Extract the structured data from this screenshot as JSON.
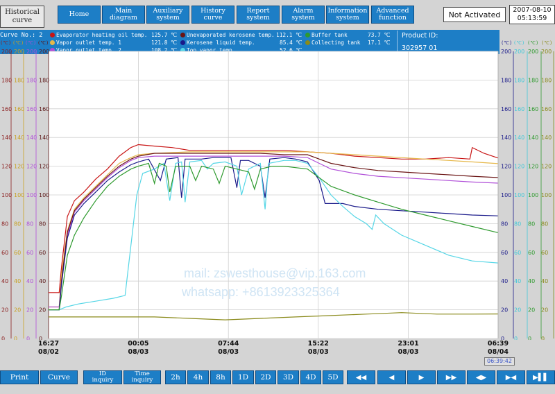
{
  "header": {
    "page_title_line1": "Historical",
    "page_title_line2": "curve",
    "nav": [
      {
        "line1": "Home",
        "line2": ""
      },
      {
        "line1": "Main",
        "line2": "diagram"
      },
      {
        "line1": "Auxiliary",
        "line2": "system"
      },
      {
        "line1": "History",
        "line2": "curve"
      },
      {
        "line1": "Report",
        "line2": "system"
      },
      {
        "line1": "Alarm",
        "line2": "system"
      },
      {
        "line1": "Information",
        "line2": "system"
      },
      {
        "line1": "Advanced",
        "line2": "function"
      }
    ],
    "activation_status": "Not Activated",
    "date": "2007-08-10",
    "time": "05:13:59"
  },
  "info": {
    "curve_no_label": "Curve No.: 2",
    "product_id_label": "Product ID:",
    "product_id_value": "302957 01",
    "units": [
      "(℃)",
      "(℃)",
      "(℃)",
      "(℃)",
      "(℃)",
      "(℃)",
      "(℃)",
      "(℃)"
    ]
  },
  "legend": [
    {
      "name": "Evaporator heating oil temp.",
      "value": "125.7 ℃",
      "color": "#c81414"
    },
    {
      "name": "Vapor outlet temp. 1",
      "value": "121.8 ℃",
      "color": "#e6b84a"
    },
    {
      "name": "Vapor outlet temp. 2",
      "value": "108.2 ℃",
      "color": "#b04fd8"
    },
    {
      "name": "Unevaporated kerosene temp.",
      "value": "112.1 ℃",
      "color": "#6a1414"
    },
    {
      "name": "Kerosene liquid temp.",
      "value": "85.4 ℃",
      "color": "#1a1a8a"
    },
    {
      "name": "Top vapor temp.",
      "value": "52.6 ℃",
      "color": "#55d6e6"
    },
    {
      "name": "Buffer tank",
      "value": "73.7 ℃",
      "color": "#2e9a2e"
    },
    {
      "name": "Collecting tank",
      "value": "17.1 ℃",
      "color": "#8a8a1a"
    }
  ],
  "axis_colors": {
    "left": [
      "#8a1a1a",
      "#c8a020",
      "#b04fd8",
      "#5a1414"
    ],
    "right": [
      "#1a1a8a",
      "#40c8d8",
      "#2e9a2e",
      "#8a8a1a"
    ]
  },
  "chart_data": {
    "type": "line",
    "y_ticks": [
      "0",
      "20",
      "40",
      "60",
      "80",
      "100",
      "120",
      "140",
      "160",
      "180",
      "200"
    ],
    "ylim": [
      0,
      200
    ],
    "x_ticks": [
      {
        "time": "16:27",
        "date": "08/02"
      },
      {
        "time": "00:05",
        "date": "08/03"
      },
      {
        "time": "07:44",
        "date": "08/03"
      },
      {
        "time": "15:22",
        "date": "08/03"
      },
      {
        "time": "23:01",
        "date": "08/03"
      },
      {
        "time": "06:39",
        "date": "08/04"
      }
    ],
    "x_hours": [
      0,
      7.63,
      15.28,
      22.92,
      30.57,
      38.2
    ],
    "cursor_time": "06:39:42",
    "series": [
      {
        "name": "Evaporator heating oil temp.",
        "color": "#c81414",
        "points": [
          [
            0,
            32
          ],
          [
            0.9,
            32
          ],
          [
            1.1,
            50
          ],
          [
            1.6,
            85
          ],
          [
            2.2,
            96
          ],
          [
            3.0,
            102
          ],
          [
            4.0,
            111
          ],
          [
            5.0,
            118
          ],
          [
            6.0,
            127
          ],
          [
            7.0,
            133
          ],
          [
            7.63,
            135
          ],
          [
            9.0,
            134
          ],
          [
            10.5,
            133
          ],
          [
            12,
            131
          ],
          [
            14,
            131
          ],
          [
            16,
            131
          ],
          [
            18,
            131
          ],
          [
            20,
            131
          ],
          [
            22,
            130
          ],
          [
            24,
            129
          ],
          [
            26,
            127
          ],
          [
            28,
            126
          ],
          [
            30,
            125
          ],
          [
            32,
            125
          ],
          [
            34,
            126
          ],
          [
            35.8,
            125
          ],
          [
            36,
            133
          ],
          [
            37,
            129
          ],
          [
            38.2,
            125.7
          ]
        ]
      },
      {
        "name": "Vapor outlet temp. 1",
        "color": "#e6b84a",
        "points": [
          [
            0,
            22
          ],
          [
            0.9,
            22
          ],
          [
            1.1,
            45
          ],
          [
            1.6,
            75
          ],
          [
            2.2,
            90
          ],
          [
            3.0,
            98
          ],
          [
            4.0,
            106
          ],
          [
            5.0,
            114
          ],
          [
            6.0,
            122
          ],
          [
            7.0,
            126
          ],
          [
            7.63,
            128
          ],
          [
            9,
            129
          ],
          [
            12,
            130
          ],
          [
            15,
            130
          ],
          [
            18,
            130
          ],
          [
            20,
            130
          ],
          [
            22,
            130
          ],
          [
            24,
            129
          ],
          [
            26,
            128
          ],
          [
            28,
            127
          ],
          [
            30,
            126
          ],
          [
            32,
            125
          ],
          [
            34,
            124
          ],
          [
            36,
            123
          ],
          [
            38.2,
            121.8
          ]
        ]
      },
      {
        "name": "Vapor outlet temp. 2",
        "color": "#b04fd8",
        "points": [
          [
            0,
            22
          ],
          [
            0.9,
            22
          ],
          [
            1.1,
            40
          ],
          [
            1.6,
            72
          ],
          [
            2.2,
            88
          ],
          [
            3.0,
            96
          ],
          [
            4.0,
            104
          ],
          [
            5.0,
            112
          ],
          [
            6.0,
            119
          ],
          [
            7.0,
            124
          ],
          [
            7.63,
            126
          ],
          [
            9,
            127
          ],
          [
            12,
            127
          ],
          [
            15,
            127
          ],
          [
            18,
            127
          ],
          [
            20,
            127
          ],
          [
            22,
            126
          ],
          [
            23,
            122
          ],
          [
            24,
            118
          ],
          [
            26,
            115
          ],
          [
            28,
            113
          ],
          [
            30,
            112
          ],
          [
            32,
            111
          ],
          [
            34,
            110
          ],
          [
            36,
            109
          ],
          [
            38.2,
            108.2
          ]
        ]
      },
      {
        "name": "Unevaporated kerosene temp.",
        "color": "#6a1414",
        "points": [
          [
            0,
            20
          ],
          [
            0.9,
            20
          ],
          [
            1.1,
            40
          ],
          [
            1.6,
            74
          ],
          [
            2.2,
            89
          ],
          [
            3.0,
            97
          ],
          [
            4.0,
            105
          ],
          [
            5.0,
            113
          ],
          [
            6.0,
            120
          ],
          [
            7.0,
            125
          ],
          [
            7.63,
            127
          ],
          [
            9,
            129
          ],
          [
            12,
            129
          ],
          [
            15,
            129
          ],
          [
            18,
            129
          ],
          [
            20,
            128
          ],
          [
            22,
            128
          ],
          [
            23,
            125
          ],
          [
            24,
            122
          ],
          [
            26,
            119
          ],
          [
            28,
            117
          ],
          [
            30,
            116
          ],
          [
            32,
            115
          ],
          [
            34,
            114
          ],
          [
            36,
            113
          ],
          [
            38.2,
            112.1
          ]
        ]
      },
      {
        "name": "Kerosene liquid temp.",
        "color": "#1a1a8a",
        "points": [
          [
            0,
            20
          ],
          [
            0.9,
            20
          ],
          [
            1.1,
            38
          ],
          [
            1.6,
            70
          ],
          [
            2.2,
            86
          ],
          [
            3.0,
            94
          ],
          [
            4.0,
            102
          ],
          [
            5.0,
            110
          ],
          [
            6.0,
            116
          ],
          [
            7.0,
            121
          ],
          [
            7.63,
            123
          ],
          [
            8.5,
            125
          ],
          [
            9.5,
            110
          ],
          [
            10,
            125
          ],
          [
            11,
            126
          ],
          [
            11.3,
            98
          ],
          [
            11.6,
            125
          ],
          [
            13,
            125
          ],
          [
            14,
            126
          ],
          [
            15.5,
            126
          ],
          [
            16,
            105
          ],
          [
            16.3,
            124
          ],
          [
            17,
            124
          ],
          [
            18,
            120
          ],
          [
            18.4,
            98
          ],
          [
            18.8,
            125
          ],
          [
            20,
            126
          ],
          [
            21,
            125
          ],
          [
            22,
            123
          ],
          [
            23,
            110
          ],
          [
            23.5,
            94
          ],
          [
            25,
            94
          ],
          [
            26,
            92
          ],
          [
            28,
            90
          ],
          [
            30,
            89
          ],
          [
            32,
            88
          ],
          [
            34,
            87
          ],
          [
            36,
            86
          ],
          [
            38.2,
            85.4
          ]
        ]
      },
      {
        "name": "Top vapor temp.",
        "color": "#55d6e6",
        "points": [
          [
            0,
            20
          ],
          [
            0.9,
            20
          ],
          [
            1.5,
            22
          ],
          [
            2.5,
            24
          ],
          [
            4,
            26
          ],
          [
            5.5,
            28
          ],
          [
            6.5,
            30
          ],
          [
            7.5,
            100
          ],
          [
            8,
            115
          ],
          [
            9,
            118
          ],
          [
            9.8,
            122
          ],
          [
            10.3,
            96
          ],
          [
            10.8,
            122
          ],
          [
            11.3,
            123
          ],
          [
            11.6,
            95
          ],
          [
            12,
            123
          ],
          [
            13,
            124
          ],
          [
            13.5,
            118
          ],
          [
            14,
            122
          ],
          [
            15,
            123
          ],
          [
            16,
            120
          ],
          [
            16.4,
            100
          ],
          [
            17,
            118
          ],
          [
            18,
            122
          ],
          [
            18.4,
            90
          ],
          [
            18.7,
            122
          ],
          [
            20,
            124
          ],
          [
            21,
            124
          ],
          [
            22,
            122
          ],
          [
            23,
            112
          ],
          [
            24,
            100
          ],
          [
            25,
            92
          ],
          [
            26,
            85
          ],
          [
            27,
            80
          ],
          [
            27.5,
            76
          ],
          [
            27.8,
            86
          ],
          [
            28.5,
            80
          ],
          [
            30,
            72
          ],
          [
            32,
            65
          ],
          [
            34,
            58
          ],
          [
            36,
            54
          ],
          [
            38.2,
            52.6
          ]
        ]
      },
      {
        "name": "Buffer tank",
        "color": "#2e9a2e",
        "points": [
          [
            0,
            20
          ],
          [
            0.9,
            20
          ],
          [
            1.1,
            30
          ],
          [
            1.6,
            58
          ],
          [
            2.2,
            72
          ],
          [
            3.0,
            84
          ],
          [
            4.0,
            96
          ],
          [
            5.0,
            106
          ],
          [
            6.0,
            113
          ],
          [
            7.0,
            118
          ],
          [
            7.63,
            120
          ],
          [
            8.5,
            122
          ],
          [
            9,
            108
          ],
          [
            9.4,
            122
          ],
          [
            10,
            120
          ],
          [
            10.3,
            102
          ],
          [
            10.8,
            120
          ],
          [
            12,
            120
          ],
          [
            12.5,
            110
          ],
          [
            13,
            120
          ],
          [
            14,
            118
          ],
          [
            14.5,
            108
          ],
          [
            15,
            120
          ],
          [
            16,
            118
          ],
          [
            17,
            116
          ],
          [
            17.5,
            104
          ],
          [
            18,
            118
          ],
          [
            19,
            120
          ],
          [
            20,
            120
          ],
          [
            21,
            119
          ],
          [
            22,
            118
          ],
          [
            23,
            112
          ],
          [
            24,
            106
          ],
          [
            26,
            100
          ],
          [
            28,
            95
          ],
          [
            30,
            90
          ],
          [
            32,
            86
          ],
          [
            34,
            82
          ],
          [
            36,
            78
          ],
          [
            38.2,
            73.7
          ]
        ]
      },
      {
        "name": "Collecting tank",
        "color": "#8a8a1a",
        "points": [
          [
            0,
            15
          ],
          [
            3,
            15
          ],
          [
            6,
            15
          ],
          [
            9,
            15
          ],
          [
            12,
            14
          ],
          [
            15,
            13
          ],
          [
            18,
            14
          ],
          [
            21,
            15
          ],
          [
            24,
            16
          ],
          [
            27,
            17
          ],
          [
            30,
            18
          ],
          [
            33,
            17
          ],
          [
            36,
            17
          ],
          [
            38.2,
            17.1
          ]
        ]
      }
    ]
  },
  "watermark": {
    "line1": "mail: zswesthouse@vip.163.com",
    "line2": "whatsapp: +8613923325364"
  },
  "toolbar": {
    "print": "Print",
    "curve": "Curve",
    "id_inquiry_1": "ID",
    "id_inquiry_2": "inquiry",
    "time_inquiry_1": "Time",
    "time_inquiry_2": "inquiry",
    "ranges": [
      "2h",
      "4h",
      "8h",
      "1D",
      "2D",
      "3D",
      "4D",
      "5D"
    ],
    "playback": [
      "◀◀",
      "◀",
      "▶",
      "▶▶",
      "◀▶",
      "▶◀",
      "▶▌▌"
    ]
  }
}
